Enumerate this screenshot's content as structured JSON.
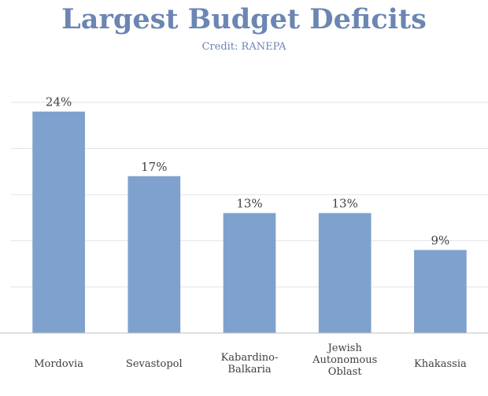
{
  "chart_data": {
    "type": "bar",
    "title": "Largest Budget Deficits",
    "subtitle": "Credit: RANEPA",
    "categories": [
      [
        "Mordovia"
      ],
      [
        "Sevastopol"
      ],
      [
        "Kabardino-",
        "Balkaria"
      ],
      [
        "Jewish",
        "Autonomous",
        "Oblast"
      ],
      [
        "Khakassia"
      ]
    ],
    "values": [
      24,
      17,
      13,
      13,
      9
    ],
    "value_labels": [
      "24%",
      "17%",
      "13%",
      "13%",
      "9%"
    ],
    "ylim": [
      0,
      25
    ],
    "grid": true,
    "y_tick_labels_visible": false,
    "colors": {
      "bar": "#7fa1cd",
      "label": "#404040",
      "grid": "#e3e3e3",
      "title": "#6b86b3"
    }
  }
}
